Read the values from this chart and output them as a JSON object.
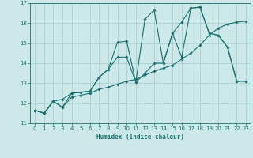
{
  "xlabel": "Humidex (Indice chaleur)",
  "bg_color": "#cce8e8",
  "grid_color": "#aacfcf",
  "line_color": "#1a7070",
  "ylim": [
    11,
    17
  ],
  "xlim": [
    -0.5,
    23.5
  ],
  "yticks": [
    11,
    12,
    13,
    14,
    15,
    16,
    17
  ],
  "xticks": [
    0,
    1,
    2,
    3,
    4,
    5,
    6,
    7,
    8,
    9,
    10,
    11,
    12,
    13,
    14,
    15,
    16,
    17,
    18,
    19,
    20,
    21,
    22,
    23
  ],
  "line1_x": [
    0,
    1,
    2,
    3,
    4,
    5,
    6,
    7,
    8,
    9,
    10,
    11,
    12,
    13,
    14,
    15,
    16,
    17,
    18,
    19,
    20,
    21,
    22,
    23
  ],
  "line1_y": [
    11.65,
    11.5,
    12.1,
    12.2,
    12.5,
    12.55,
    12.6,
    13.3,
    13.7,
    15.05,
    15.1,
    13.05,
    16.2,
    16.65,
    14.0,
    15.5,
    14.3,
    16.75,
    16.8,
    15.5,
    15.4,
    14.8,
    13.1,
    13.1
  ],
  "line2_x": [
    0,
    1,
    2,
    3,
    4,
    5,
    6,
    7,
    8,
    9,
    10,
    11,
    12,
    13,
    14,
    15,
    16,
    17,
    18,
    19,
    20,
    21,
    22,
    23
  ],
  "line2_y": [
    11.65,
    11.5,
    12.1,
    11.8,
    12.5,
    12.55,
    12.6,
    13.3,
    13.7,
    14.3,
    14.3,
    13.05,
    13.5,
    14.0,
    14.0,
    15.5,
    16.05,
    16.75,
    16.8,
    15.5,
    15.4,
    14.8,
    13.1,
    13.1
  ],
  "line3_x": [
    0,
    1,
    2,
    3,
    4,
    5,
    6,
    7,
    8,
    9,
    10,
    11,
    12,
    13,
    14,
    15,
    16,
    17,
    18,
    19,
    20,
    21,
    22,
    23
  ],
  "line3_y": [
    11.65,
    11.5,
    12.1,
    11.8,
    12.3,
    12.4,
    12.5,
    12.7,
    12.8,
    12.95,
    13.1,
    13.2,
    13.4,
    13.6,
    13.75,
    13.9,
    14.2,
    14.5,
    14.9,
    15.4,
    15.75,
    15.95,
    16.05,
    16.1
  ]
}
